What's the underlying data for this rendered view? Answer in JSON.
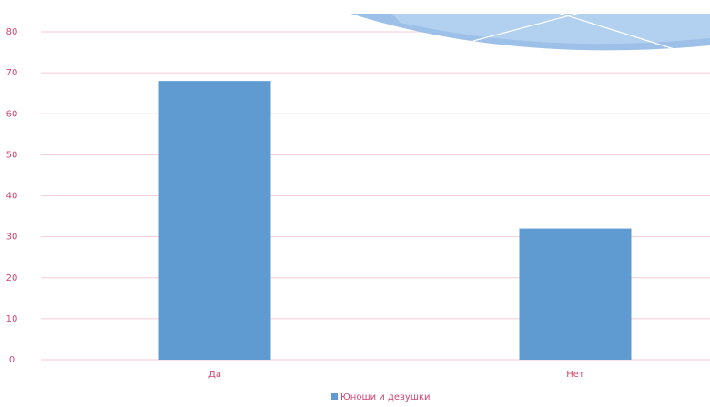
{
  "chart_data": {
    "type": "bar",
    "categories": [
      "Да",
      "Нет"
    ],
    "series": [
      {
        "name": "Юноши и девушки",
        "color": "#5f9bd1",
        "values": [
          68,
          32
        ]
      }
    ],
    "ylim": [
      0,
      80
    ],
    "yticks": [
      0,
      10,
      20,
      30,
      40,
      50,
      60,
      70,
      80
    ],
    "grid": true
  }
}
